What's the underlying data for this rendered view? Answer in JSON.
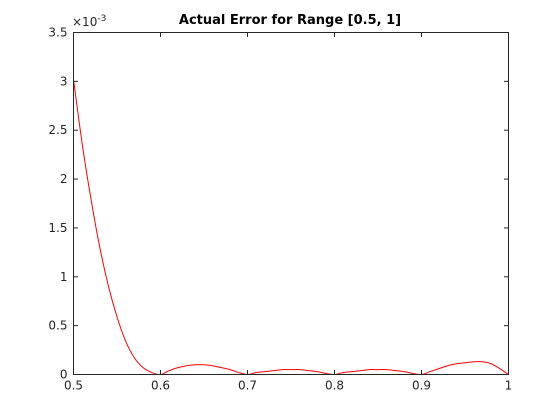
{
  "chart_data": {
    "type": "line",
    "title": "Actual Error for Range [0.5, 1]",
    "xlabel": "",
    "ylabel": "",
    "xlim": [
      0.5,
      1
    ],
    "ylim": [
      0,
      0.0035
    ],
    "y_exponent_label": "×10",
    "y_exponent_power": "-3",
    "xticks": [
      0.5,
      0.6,
      0.7,
      0.8,
      0.9,
      1
    ],
    "xtick_labels": [
      "0.5",
      "0.6",
      "0.7",
      "0.8",
      "0.9",
      "1"
    ],
    "yticks": [
      0,
      0.0005,
      0.001,
      0.0015,
      0.002,
      0.0025,
      0.003,
      0.0035
    ],
    "ytick_labels": [
      "0",
      "0.5",
      "1",
      "1.5",
      "2",
      "2.5",
      "3",
      "3.5"
    ],
    "grid": false,
    "series": [
      {
        "color": "#ff0000",
        "x": [
          0.5,
          0.51,
          0.52,
          0.53,
          0.54,
          0.55,
          0.56,
          0.57,
          0.58,
          0.59,
          0.6,
          0.61,
          0.62,
          0.63,
          0.64,
          0.65,
          0.66,
          0.67,
          0.68,
          0.69,
          0.7,
          0.71,
          0.72,
          0.73,
          0.74,
          0.75,
          0.76,
          0.77,
          0.78,
          0.79,
          0.8,
          0.81,
          0.82,
          0.83,
          0.84,
          0.85,
          0.86,
          0.87,
          0.88,
          0.89,
          0.9,
          0.91,
          0.92,
          0.93,
          0.94,
          0.95,
          0.96,
          0.97,
          0.98,
          0.99,
          1.0
        ],
        "y": [
          0.00302,
          0.00236,
          0.0018,
          0.00131,
          0.00091,
          0.00059,
          0.00034,
          0.00017,
          7e-05,
          2e-05,
          0.0,
          4e-05,
          7e-05,
          9e-05,
          0.0001,
          0.0001,
          9e-05,
          7e-05,
          5e-05,
          2e-05,
          0.0,
          2e-05,
          3e-05,
          4e-05,
          5e-05,
          5e-05,
          5e-05,
          4e-05,
          3e-05,
          1e-05,
          0.0,
          2e-05,
          3e-05,
          4e-05,
          5e-05,
          5e-05,
          5e-05,
          4e-05,
          3e-05,
          1e-05,
          0.0,
          3e-05,
          6e-05,
          9e-05,
          0.00011,
          0.00012,
          0.00013,
          0.00013,
          0.00011,
          6e-05,
          0.0
        ]
      }
    ]
  }
}
